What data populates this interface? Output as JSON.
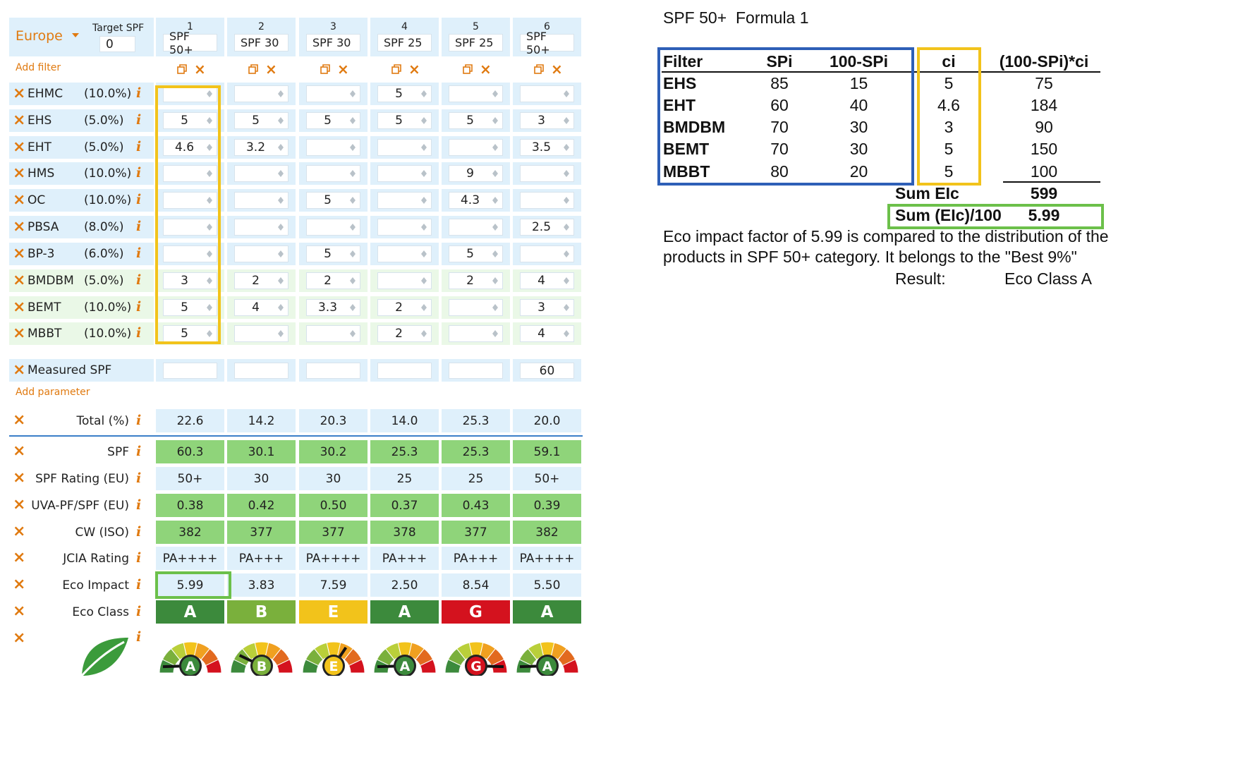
{
  "region": {
    "label": "Europe"
  },
  "target_spf": {
    "label": "Target SPF",
    "value": "0"
  },
  "products": [
    {
      "num": "1",
      "spf": "SPF 50+"
    },
    {
      "num": "2",
      "spf": "SPF 30"
    },
    {
      "num": "3",
      "spf": "SPF 30"
    },
    {
      "num": "4",
      "spf": "SPF 25"
    },
    {
      "num": "5",
      "spf": "SPF 25"
    },
    {
      "num": "6",
      "spf": "SPF 50+"
    }
  ],
  "add_filter_label": "Add filter",
  "filters": [
    {
      "name": "EHMC",
      "pct": "(10.0%)",
      "values": [
        "",
        "",
        "",
        "5",
        "",
        ""
      ]
    },
    {
      "name": "EHS",
      "pct": "(5.0%)",
      "values": [
        "5",
        "5",
        "5",
        "5",
        "5",
        "3"
      ]
    },
    {
      "name": "EHT",
      "pct": "(5.0%)",
      "values": [
        "4.6",
        "3.2",
        "",
        "",
        "",
        "3.5"
      ]
    },
    {
      "name": "HMS",
      "pct": "(10.0%)",
      "values": [
        "",
        "",
        "",
        "",
        "9",
        ""
      ]
    },
    {
      "name": "OC",
      "pct": "(10.0%)",
      "values": [
        "",
        "",
        "5",
        "",
        "4.3",
        ""
      ]
    },
    {
      "name": "PBSA",
      "pct": "(8.0%)",
      "values": [
        "",
        "",
        "",
        "",
        "",
        "2.5"
      ]
    },
    {
      "name": "BP-3",
      "pct": "(6.0%)",
      "values": [
        "",
        "",
        "5",
        "",
        "5",
        ""
      ]
    },
    {
      "name": "BMDBM",
      "pct": "(5.0%)",
      "values": [
        "3",
        "2",
        "2",
        "",
        "2",
        "4"
      ]
    },
    {
      "name": "BEMT",
      "pct": "(10.0%)",
      "values": [
        "5",
        "4",
        "3.3",
        "2",
        "",
        "3"
      ]
    },
    {
      "name": "MBBT",
      "pct": "(10.0%)",
      "values": [
        "5",
        "",
        "",
        "2",
        "",
        "4"
      ]
    }
  ],
  "measured_spf": {
    "label": "Measured SPF",
    "values": [
      "",
      "",
      "",
      "",
      "",
      "60"
    ]
  },
  "add_parameter_label": "Add parameter",
  "results": [
    {
      "label": "Total (%)",
      "values": [
        "22.6",
        "14.2",
        "20.3",
        "14.0",
        "25.3",
        "20.0"
      ],
      "style": "blue"
    },
    {
      "label": "SPF",
      "values": [
        "60.3",
        "30.1",
        "30.2",
        "25.3",
        "25.3",
        "59.1"
      ],
      "style": "green"
    },
    {
      "label": "SPF Rating (EU)",
      "values": [
        "50+",
        "30",
        "30",
        "25",
        "25",
        "50+"
      ],
      "style": "blue"
    },
    {
      "label": "UVA-PF/SPF (EU)",
      "values": [
        "0.38",
        "0.42",
        "0.50",
        "0.37",
        "0.43",
        "0.39"
      ],
      "style": "green"
    },
    {
      "label": "CW (ISO)",
      "values": [
        "382",
        "377",
        "377",
        "378",
        "377",
        "382"
      ],
      "style": "green"
    },
    {
      "label": "JCIA Rating",
      "values": [
        "PA++++",
        "PA+++",
        "PA++++",
        "PA+++",
        "PA+++",
        "PA++++"
      ],
      "style": "blue"
    },
    {
      "label": "Eco Impact",
      "values": [
        "5.99",
        "3.83",
        "7.59",
        "2.50",
        "8.54",
        "5.50"
      ],
      "style": "blue"
    }
  ],
  "eco_class": {
    "label": "Eco Class",
    "values": [
      "A",
      "B",
      "E",
      "A",
      "G",
      "A"
    ],
    "colors": [
      "#3c8a3c",
      "#7ab03c",
      "#f2c31b",
      "#3c8a3c",
      "#d4121e",
      "#3c8a3c"
    ]
  },
  "right_panel": {
    "title": "SPF 50+",
    "formula": "Formula 1",
    "headers": [
      "Filter",
      "SPi",
      "100-SPi",
      "ci",
      "(100-SPi)*ci"
    ],
    "rows": [
      [
        "EHS",
        "85",
        "15",
        "5",
        "75"
      ],
      [
        "EHT",
        "60",
        "40",
        "4.6",
        "184"
      ],
      [
        "BMDBM",
        "70",
        "30",
        "3",
        "90"
      ],
      [
        "BEMT",
        "70",
        "30",
        "5",
        "150"
      ],
      [
        "MBBT",
        "80",
        "20",
        "5",
        "100"
      ]
    ],
    "sum_label": "Sum EIc",
    "sum_value": "599",
    "sum100_label": "Sum (EIc)/100",
    "sum100_value": "5.99",
    "note_line1": "Eco impact factor of 5.99 is compared to the distribution of the",
    "note_line2": "products in SPF 50+ category. It belongs to the \"Best 9%\"",
    "result_label": "Result:",
    "result_value": "Eco Class A"
  },
  "colors": {
    "accent": "#e07a10",
    "light_blue": "#dff0fb",
    "result_green": "#8fd47a",
    "highlight_yellow": "#f2c31b",
    "highlight_green": "#6cc04a",
    "highlight_blue": "#2e5fb7"
  }
}
